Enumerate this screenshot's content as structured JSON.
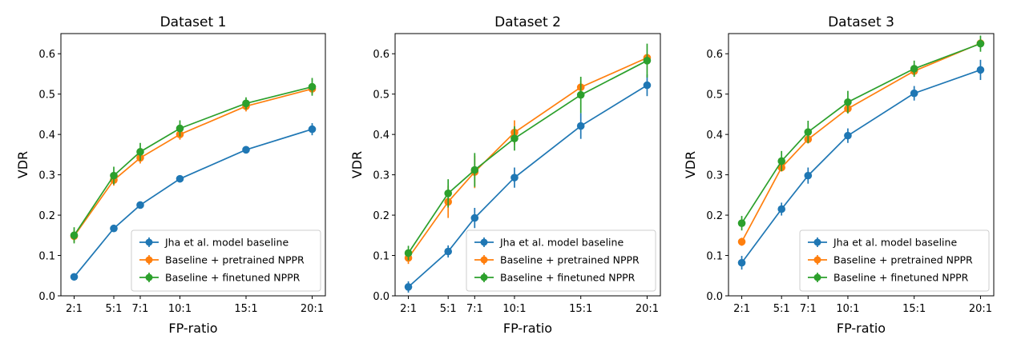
{
  "chart_data": [
    {
      "type": "line",
      "title": "Dataset 1",
      "xlabel": "FP-ratio",
      "ylabel": "VDR",
      "x": [
        2,
        5,
        7,
        10,
        15,
        20
      ],
      "xtick_labels": [
        "2:1",
        "5:1",
        "7:1",
        "10:1",
        "15:1",
        "20:1"
      ],
      "xlim": [
        1,
        21
      ],
      "ylim": [
        0.0,
        0.65
      ],
      "yticks": [
        0.0,
        0.1,
        0.2,
        0.3,
        0.4,
        0.5,
        0.6
      ],
      "ytick_labels": [
        "0.0",
        "0.1",
        "0.2",
        "0.3",
        "0.4",
        "0.5",
        "0.6"
      ],
      "legend_position": "bottom-right",
      "series": [
        {
          "name": "Jha et al. model baseline",
          "color": "#1f77b4",
          "values": [
            0.047,
            0.167,
            0.225,
            0.29,
            0.362,
            0.413
          ],
          "errors": [
            0.004,
            0.006,
            0.006,
            0.006,
            0.009,
            0.015
          ]
        },
        {
          "name": "Baseline + pretrained NPPR",
          "color": "#ff7f0e",
          "values": [
            0.148,
            0.287,
            0.342,
            0.4,
            0.47,
            0.513
          ],
          "errors": [
            0.014,
            0.014,
            0.014,
            0.013,
            0.013,
            0.013
          ]
        },
        {
          "name": "Baseline + finetuned NPPR",
          "color": "#2ca02c",
          "values": [
            0.15,
            0.298,
            0.357,
            0.415,
            0.477,
            0.518
          ],
          "errors": [
            0.02,
            0.022,
            0.022,
            0.02,
            0.015,
            0.022
          ]
        }
      ]
    },
    {
      "type": "line",
      "title": "Dataset 2",
      "xlabel": "FP-ratio",
      "ylabel": "VDR",
      "x": [
        2,
        5,
        7,
        10,
        15,
        20
      ],
      "xtick_labels": [
        "2:1",
        "5:1",
        "7:1",
        "10:1",
        "15:1",
        "20:1"
      ],
      "xlim": [
        1,
        21
      ],
      "ylim": [
        0.0,
        0.65
      ],
      "yticks": [
        0.0,
        0.1,
        0.2,
        0.3,
        0.4,
        0.5,
        0.6
      ],
      "ytick_labels": [
        "0.0",
        "0.1",
        "0.2",
        "0.3",
        "0.4",
        "0.5",
        "0.6"
      ],
      "legend_position": "bottom-right",
      "series": [
        {
          "name": "Jha et al. model baseline",
          "color": "#1f77b4",
          "values": [
            0.022,
            0.11,
            0.193,
            0.293,
            0.421,
            0.522
          ],
          "errors": [
            0.014,
            0.015,
            0.025,
            0.025,
            0.032,
            0.027
          ]
        },
        {
          "name": "Baseline + pretrained NPPR",
          "color": "#ff7f0e",
          "values": [
            0.094,
            0.233,
            0.307,
            0.405,
            0.517,
            0.59
          ],
          "errors": [
            0.015,
            0.04,
            0.04,
            0.03,
            0.015,
            0.01
          ]
        },
        {
          "name": "Baseline + finetuned NPPR",
          "color": "#2ca02c",
          "values": [
            0.106,
            0.254,
            0.312,
            0.39,
            0.498,
            0.583
          ],
          "errors": [
            0.018,
            0.035,
            0.042,
            0.03,
            0.045,
            0.042
          ]
        }
      ]
    },
    {
      "type": "line",
      "title": "Dataset 3",
      "xlabel": "FP-ratio",
      "ylabel": "VDR",
      "x": [
        2,
        5,
        7,
        10,
        15,
        20
      ],
      "xtick_labels": [
        "2:1",
        "5:1",
        "7:1",
        "10:1",
        "15:1",
        "20:1"
      ],
      "xlim": [
        1,
        21
      ],
      "ylim": [
        0.0,
        0.65
      ],
      "yticks": [
        0.0,
        0.1,
        0.2,
        0.3,
        0.4,
        0.5,
        0.6
      ],
      "ytick_labels": [
        "0.0",
        "0.1",
        "0.2",
        "0.3",
        "0.4",
        "0.5",
        "0.6"
      ],
      "legend_position": "bottom-right",
      "series": [
        {
          "name": "Jha et al. model baseline",
          "color": "#1f77b4",
          "values": [
            0.082,
            0.215,
            0.298,
            0.397,
            0.502,
            0.56
          ],
          "errors": [
            0.017,
            0.016,
            0.02,
            0.018,
            0.018,
            0.025
          ]
        },
        {
          "name": "Baseline + pretrained NPPR",
          "color": "#ff7f0e",
          "values": [
            0.134,
            0.318,
            0.388,
            0.464,
            0.557,
            0.626
          ],
          "errors": [
            0.01,
            0.01,
            0.01,
            0.01,
            0.01,
            0.01
          ]
        },
        {
          "name": "Baseline + finetuned NPPR",
          "color": "#2ca02c",
          "values": [
            0.18,
            0.334,
            0.406,
            0.48,
            0.563,
            0.625
          ],
          "errors": [
            0.018,
            0.025,
            0.028,
            0.028,
            0.02,
            0.02
          ]
        }
      ]
    }
  ]
}
